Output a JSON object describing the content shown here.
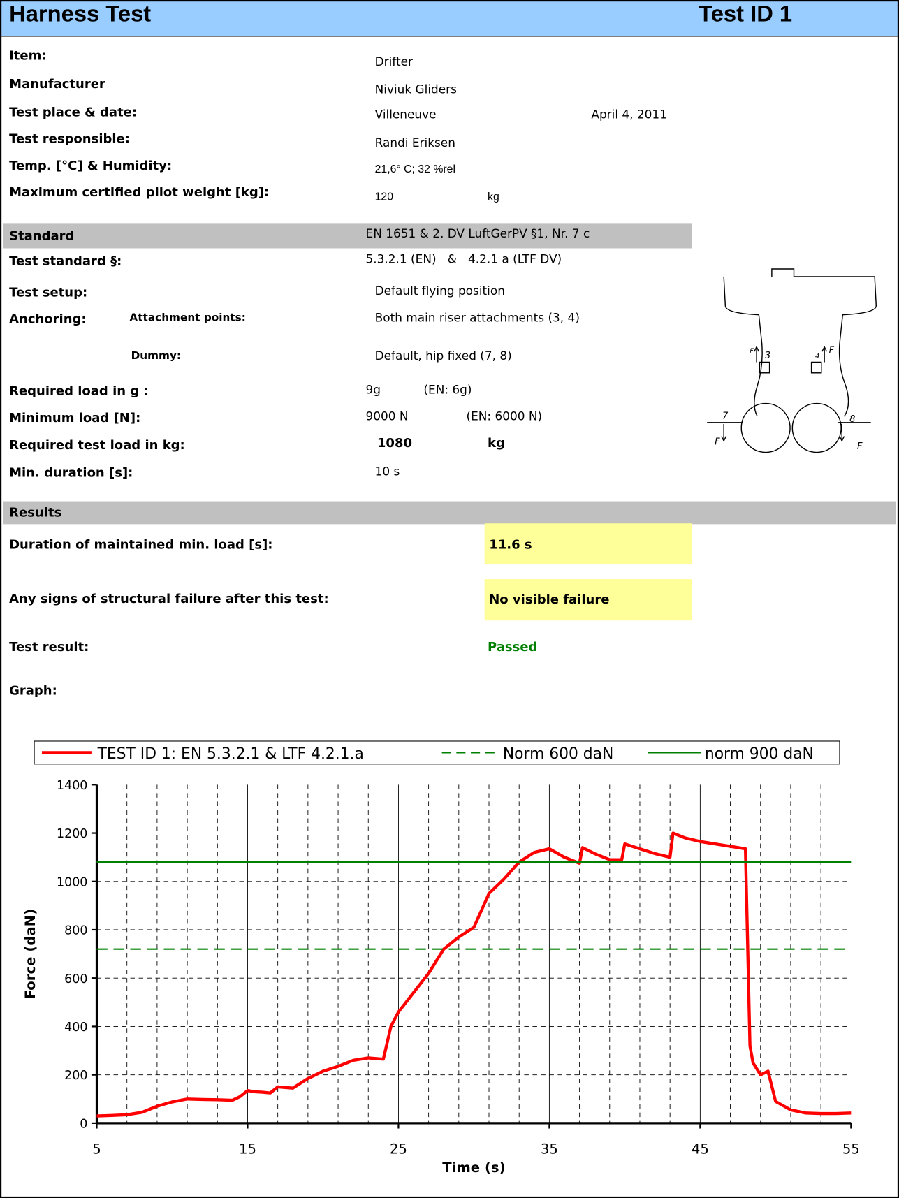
{
  "header": {
    "title": "Harness Test",
    "test_id": "Test ID 1"
  },
  "info": [
    {
      "label": "Item:",
      "value": "Drifter"
    },
    {
      "label": "Manufacturer",
      "value": "Niviuk Gliders"
    },
    {
      "label": "Test place & date:",
      "value": "Villeneuve",
      "date": "April 4, 2011"
    },
    {
      "label": "Test responsible:",
      "value": "Randi Eriksen"
    },
    {
      "label": "Temp. [°C] & Humidity:",
      "value": "21,6° C; 32 %rel"
    },
    {
      "label": "Maximum certified pilot weight [kg]:",
      "value": "120",
      "unit": "kg"
    }
  ],
  "standard": {
    "label": "Standard",
    "value": "EN 1651 & 2. DV LuftGerPV §1, Nr. 7 c"
  },
  "setup": [
    {
      "label": "Test standard §:",
      "value": "5.3.2.1 (EN)   &   4.2.1 a (LTF DV)"
    },
    {
      "label": "Test setup:",
      "value": "Default flying position"
    }
  ],
  "anchoring": {
    "label": "Anchoring:",
    "points_label": "Attachment points:",
    "points": "Both main riser attachments (3, 4)",
    "dummy_label": "Dummy:",
    "dummy": "Default, hip fixed (7, 8)"
  },
  "load": [
    {
      "label": "Required load in g :",
      "value": "9g",
      "en": "(EN: 6g)"
    },
    {
      "label": "Minimum load [N]:",
      "value": "9000 N",
      "en": "(EN: 6000 N)"
    },
    {
      "label": "Required test load in kg:",
      "value": "1080",
      "unit": "kg"
    },
    {
      "label": "Min. duration [s]:",
      "value": "10 s"
    }
  ],
  "results": {
    "title": "Results",
    "duration_label": "Duration of maintained min. load [s]:",
    "duration": "11.6 s",
    "failure_label": "Any signs of structural failure after this test:",
    "failure": "No visible failure",
    "result_label": "Test result:",
    "result": "Passed",
    "graph_label": "Graph:"
  },
  "diagram": {
    "labels": [
      "F",
      "3",
      "4",
      "F",
      "7",
      "F",
      "8",
      "F"
    ]
  },
  "chart_data": {
    "type": "line",
    "x_label": "Time (s)",
    "y_label": "Force (daN)",
    "xlim": [
      5,
      55
    ],
    "xticks": [
      5,
      15,
      25,
      35,
      45,
      55
    ],
    "xminor": [
      7,
      9,
      11,
      13,
      17,
      19,
      21,
      23,
      27,
      29,
      31,
      33,
      37,
      39,
      41,
      43,
      47,
      49,
      51,
      53
    ],
    "ylim": [
      0,
      1400
    ],
    "yticks": [
      0,
      200,
      400,
      600,
      800,
      1000,
      1200,
      1400
    ],
    "grid": true,
    "series": [
      {
        "name": "TEST ID 1: EN 5.3.2.1 & LTF 4.2.1.a",
        "color": "#ff0000",
        "style": "solid",
        "x": [
          5,
          6,
          7,
          8,
          9,
          10,
          11,
          12,
          13,
          14,
          14.5,
          15,
          15.5,
          16,
          16.5,
          17,
          18,
          19,
          20,
          21,
          22,
          23,
          24,
          24.5,
          25,
          26,
          27,
          28,
          29,
          30,
          31,
          32,
          33,
          34,
          35,
          36,
          37,
          37.2,
          38,
          39,
          39.8,
          40,
          41,
          42,
          43,
          43.2,
          44,
          45,
          46,
          47,
          48,
          48.3,
          48.5,
          49,
          49.5,
          50,
          51,
          52,
          53,
          54,
          55
        ],
        "values": [
          30,
          32,
          35,
          45,
          70,
          88,
          100,
          98,
          97,
          95,
          110,
          135,
          130,
          128,
          125,
          150,
          145,
          185,
          215,
          235,
          260,
          270,
          265,
          400,
          460,
          540,
          620,
          720,
          770,
          810,
          950,
          1010,
          1080,
          1120,
          1135,
          1100,
          1075,
          1140,
          1115,
          1090,
          1090,
          1155,
          1135,
          1115,
          1100,
          1200,
          1180,
          1165,
          1155,
          1145,
          1135,
          320,
          250,
          200,
          215,
          90,
          55,
          42,
          40,
          40,
          42
        ]
      },
      {
        "name": "Norm 600 daN",
        "color": "#008000",
        "style": "dashed",
        "x": [
          5,
          55
        ],
        "values": [
          720,
          720
        ]
      },
      {
        "name": "norm 900 daN",
        "color": "#008000",
        "style": "solid",
        "x": [
          5,
          55
        ],
        "values": [
          1080,
          1080
        ]
      }
    ]
  }
}
